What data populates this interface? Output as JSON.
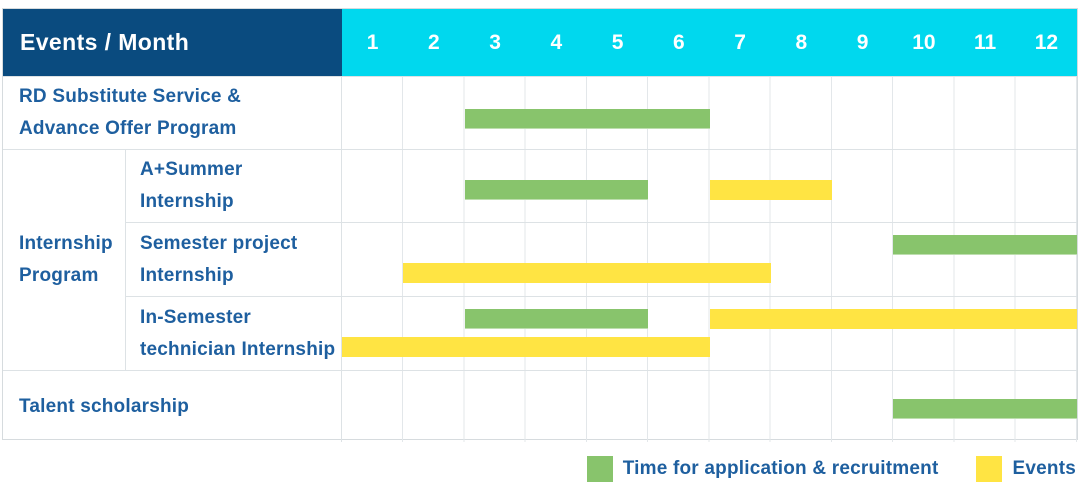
{
  "header": {
    "title": "Events / Month"
  },
  "chart_data": {
    "type": "bar",
    "subtype": "gantt-schedule",
    "title": "Events / Month",
    "x_axis": {
      "label": "Month",
      "ticks": [
        "1",
        "2",
        "3",
        "4",
        "5",
        "6",
        "7",
        "8",
        "9",
        "10",
        "11",
        "12"
      ],
      "range": [
        1,
        12
      ],
      "grid": true
    },
    "group_label_lines": [
      "Internship",
      "Program"
    ],
    "rows": [
      {
        "label": "RD Substitute Service & Advance Offer Program",
        "label_lines": [
          "RD Substitute Service &",
          "Advance Offer Program"
        ],
        "group": null,
        "tracks": 1,
        "bars": [
          {
            "series": "application",
            "start_month": 3,
            "end_month": 6,
            "line": 0
          }
        ]
      },
      {
        "label": "A+Summer Internship",
        "label_lines": [
          "A+Summer",
          "Internship"
        ],
        "group": "Internship Program",
        "tracks": 1,
        "bars": [
          {
            "series": "application",
            "start_month": 3,
            "end_month": 5,
            "line": 0
          },
          {
            "series": "event",
            "start_month": 7,
            "end_month": 8,
            "line": 0
          }
        ]
      },
      {
        "label": "Semester project Internship",
        "label_lines": [
          "Semester project",
          "Internship"
        ],
        "group": "Internship Program",
        "tracks": 2,
        "bars": [
          {
            "series": "application",
            "start_month": 10,
            "end_month": 12,
            "line": 0
          },
          {
            "series": "event",
            "start_month": 2,
            "end_month": 7,
            "line": 1
          }
        ]
      },
      {
        "label": "In-Semester technician Internship",
        "label_lines": [
          "In-Semester",
          "technician Internship"
        ],
        "group": "Internship Program",
        "tracks": 2,
        "bars": [
          {
            "series": "application",
            "start_month": 3,
            "end_month": 5,
            "line": 0
          },
          {
            "series": "event",
            "start_month": 7,
            "end_month": 12,
            "line": 0
          },
          {
            "series": "event",
            "start_month": 1,
            "end_month": 6,
            "line": 1
          }
        ]
      },
      {
        "label": "Talent scholarship",
        "label_lines": [
          "Talent scholarship"
        ],
        "group": null,
        "tracks": 1,
        "bars": [
          {
            "series": "application",
            "start_month": 10,
            "end_month": 12,
            "line": 0
          }
        ]
      }
    ],
    "series": {
      "application": {
        "label": "Time for application & recruitment",
        "color": "#88c46c"
      },
      "event": {
        "label": "Events",
        "color": "#ffe443"
      }
    },
    "legend": {
      "position": "bottom-right"
    },
    "colors": {
      "header_navy": "#0a4b7f",
      "header_cyan": "#00d8ee",
      "label_blue": "#1e5f9f",
      "grid_line": "#e3e7ea"
    }
  }
}
